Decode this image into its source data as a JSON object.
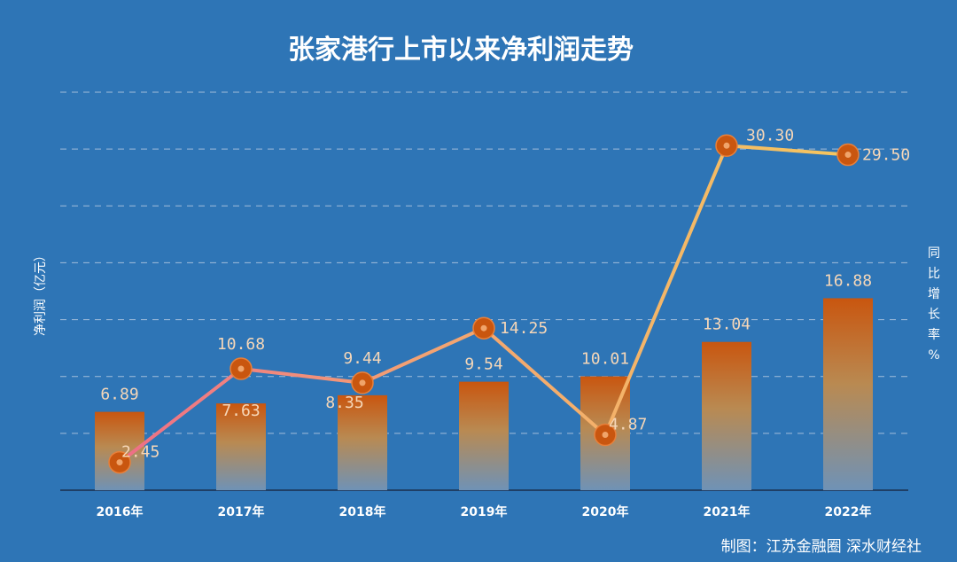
{
  "chart_data": {
    "type": "bar",
    "title": "张家港行上市以来净利润走势",
    "categories": [
      "2016年",
      "2017年",
      "2018年",
      "2019年",
      "2020年",
      "2021年",
      "2022年"
    ],
    "series": [
      {
        "name": "净利润（亿元）",
        "type": "bar",
        "axis": "left",
        "values": [
          6.89,
          7.63,
          8.35,
          9.54,
          10.01,
          13.04,
          16.88
        ],
        "labels": [
          "6.89",
          "7.63",
          "8.35",
          "9.54",
          "10.01",
          "13.04",
          "16.88"
        ]
      },
      {
        "name": "同比增长率%",
        "type": "line",
        "axis": "right",
        "values": [
          2.45,
          10.68,
          9.44,
          14.25,
          4.87,
          30.3,
          29.5
        ],
        "labels": [
          "2.45",
          "10.68",
          "9.44",
          "14.25",
          "4.87",
          "30.30",
          "29.50"
        ]
      }
    ],
    "ylabel": "净利润（亿元）",
    "y2label": [
      "同",
      "比",
      "增",
      "长",
      "率",
      "%"
    ],
    "ylim": [
      0,
      35
    ],
    "y2lim": [
      0,
      35
    ],
    "grid": true,
    "footer": "制图：江苏金融圈 深水财经社"
  },
  "colors": {
    "background": "#2e75b6",
    "bar_top": "#c9560f",
    "bar_bottom": "#6f92b6",
    "marker": "#c9560f",
    "line_start": "#ee6e87",
    "line_end": "#f5c65f",
    "label": "#f6d7b8",
    "grid": "#c9d6e6"
  }
}
